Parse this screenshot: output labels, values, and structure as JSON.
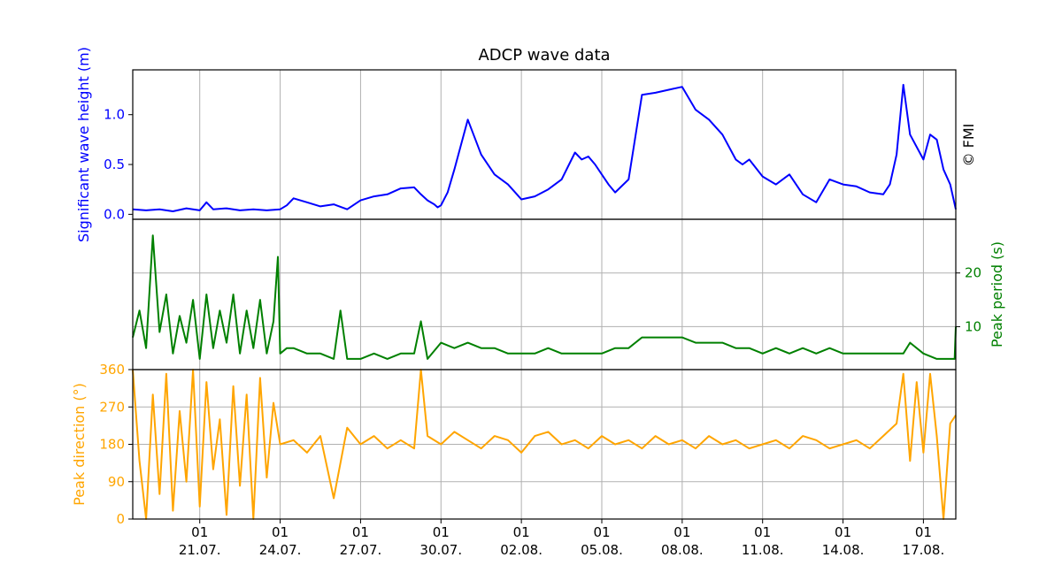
{
  "chart_data": {
    "type": "line",
    "title": "ADCP wave data",
    "credit": "© FMI",
    "x_start": "2023-07-18 12:00",
    "x_end": "2023-08-18 05:00",
    "x_ticks": [
      {
        "date": "2023-07-21",
        "day_label": "01",
        "date_label": "21.07."
      },
      {
        "date": "2023-07-24",
        "day_label": "01",
        "date_label": "24.07."
      },
      {
        "date": "2023-07-27",
        "day_label": "01",
        "date_label": "27.07."
      },
      {
        "date": "2023-07-30",
        "day_label": "01",
        "date_label": "30.07."
      },
      {
        "date": "2023-08-02",
        "day_label": "01",
        "date_label": "02.08."
      },
      {
        "date": "2023-08-05",
        "day_label": "01",
        "date_label": "05.08."
      },
      {
        "date": "2023-08-08",
        "day_label": "01",
        "date_label": "08.08."
      },
      {
        "date": "2023-08-11",
        "day_label": "01",
        "date_label": "11.08."
      },
      {
        "date": "2023-08-14",
        "day_label": "01",
        "date_label": "14.08."
      },
      {
        "date": "2023-08-17",
        "day_label": "01",
        "date_label": "17.08."
      }
    ],
    "panels": [
      {
        "name": "Significant wave height",
        "ylabel": "Significant wave height (m)",
        "axis_side": "left",
        "color": "#0000ff",
        "ylim": [
          -0.05,
          1.45
        ],
        "y_ticks": [
          0.0,
          0.5,
          1.0
        ],
        "y_tick_labels": [
          "0.0",
          "0.5",
          "1.0"
        ],
        "grid": "vertical only",
        "x": [
          "2023-07-18 12:00",
          "2023-07-19 00:00",
          "2023-07-19 12:00",
          "2023-07-20 00:00",
          "2023-07-20 12:00",
          "2023-07-21 00:00",
          "2023-07-21 06:00",
          "2023-07-21 12:00",
          "2023-07-22 00:00",
          "2023-07-22 12:00",
          "2023-07-23 00:00",
          "2023-07-23 12:00",
          "2023-07-24 00:00",
          "2023-07-24 06:00",
          "2023-07-24 12:00",
          "2023-07-25 00:00",
          "2023-07-25 12:00",
          "2023-07-26 00:00",
          "2023-07-26 12:00",
          "2023-07-27 00:00",
          "2023-07-27 12:00",
          "2023-07-28 00:00",
          "2023-07-28 12:00",
          "2023-07-29 00:00",
          "2023-07-29 06:00",
          "2023-07-29 12:00",
          "2023-07-29 18:00",
          "2023-07-29 21:00",
          "2023-07-30 00:00",
          "2023-07-30 06:00",
          "2023-07-30 12:00",
          "2023-07-31 00:00",
          "2023-07-31 12:00",
          "2023-08-01 00:00",
          "2023-08-01 12:00",
          "2023-08-01 20:00",
          "2023-08-02 00:00",
          "2023-08-02 12:00",
          "2023-08-03 00:00",
          "2023-08-03 12:00",
          "2023-08-04 00:00",
          "2023-08-04 06:00",
          "2023-08-04 12:00",
          "2023-08-04 18:00",
          "2023-08-05 00:00",
          "2023-08-05 06:00",
          "2023-08-05 12:00",
          "2023-08-06 00:00",
          "2023-08-06 12:00",
          "2023-08-07 00:00",
          "2023-08-07 12:00",
          "2023-08-08 00:00",
          "2023-08-08 12:00",
          "2023-08-09 00:00",
          "2023-08-09 12:00",
          "2023-08-10 00:00",
          "2023-08-10 06:00",
          "2023-08-10 12:00",
          "2023-08-11 00:00",
          "2023-08-11 12:00",
          "2023-08-12 00:00",
          "2023-08-12 12:00",
          "2023-08-13 00:00",
          "2023-08-13 12:00",
          "2023-08-14 00:00",
          "2023-08-14 12:00",
          "2023-08-15 00:00",
          "2023-08-15 12:00",
          "2023-08-15 18:00",
          "2023-08-16 00:00",
          "2023-08-16 06:00",
          "2023-08-16 12:00",
          "2023-08-17 00:00",
          "2023-08-17 06:00",
          "2023-08-17 12:00",
          "2023-08-17 18:00",
          "2023-08-18 00:00",
          "2023-08-18 05:00"
        ],
        "values": [
          0.05,
          0.04,
          0.05,
          0.03,
          0.06,
          0.04,
          0.12,
          0.05,
          0.06,
          0.04,
          0.05,
          0.04,
          0.05,
          0.09,
          0.16,
          0.12,
          0.08,
          0.1,
          0.05,
          0.14,
          0.18,
          0.2,
          0.26,
          0.27,
          0.2,
          0.14,
          0.1,
          0.07,
          0.09,
          0.22,
          0.45,
          0.95,
          0.6,
          0.4,
          0.3,
          0.2,
          0.15,
          0.18,
          0.25,
          0.35,
          0.62,
          0.55,
          0.58,
          0.5,
          0.4,
          0.3,
          0.22,
          0.35,
          1.2,
          1.22,
          1.25,
          1.28,
          1.05,
          0.95,
          0.8,
          0.55,
          0.5,
          0.55,
          0.38,
          0.3,
          0.4,
          0.2,
          0.12,
          0.35,
          0.3,
          0.28,
          0.22,
          0.2,
          0.3,
          0.6,
          1.3,
          0.8,
          0.55,
          0.8,
          0.75,
          0.45,
          0.3,
          0.05
        ]
      },
      {
        "name": "Peak period",
        "ylabel": "Peak period (s)",
        "axis_side": "right",
        "color": "#008000",
        "ylim": [
          2,
          30
        ],
        "y_ticks": [
          10,
          20
        ],
        "y_tick_labels": [
          "10",
          "20"
        ],
        "grid": "both",
        "x": [
          "2023-07-18 12:00",
          "2023-07-18 18:00",
          "2023-07-19 00:00",
          "2023-07-19 06:00",
          "2023-07-19 12:00",
          "2023-07-19 18:00",
          "2023-07-20 00:00",
          "2023-07-20 06:00",
          "2023-07-20 12:00",
          "2023-07-20 18:00",
          "2023-07-21 00:00",
          "2023-07-21 06:00",
          "2023-07-21 12:00",
          "2023-07-21 18:00",
          "2023-07-22 00:00",
          "2023-07-22 06:00",
          "2023-07-22 12:00",
          "2023-07-22 18:00",
          "2023-07-23 00:00",
          "2023-07-23 06:00",
          "2023-07-23 12:00",
          "2023-07-23 18:00",
          "2023-07-23 22:00",
          "2023-07-24 00:00",
          "2023-07-24 06:00",
          "2023-07-24 12:00",
          "2023-07-25 00:00",
          "2023-07-25 12:00",
          "2023-07-26 00:00",
          "2023-07-26 06:00",
          "2023-07-26 12:00",
          "2023-07-27 00:00",
          "2023-07-27 12:00",
          "2023-07-28 00:00",
          "2023-07-28 12:00",
          "2023-07-29 00:00",
          "2023-07-29 06:00",
          "2023-07-29 12:00",
          "2023-07-30 00:00",
          "2023-07-30 12:00",
          "2023-07-31 00:00",
          "2023-07-31 12:00",
          "2023-08-01 00:00",
          "2023-08-01 12:00",
          "2023-08-02 00:00",
          "2023-08-02 12:00",
          "2023-08-03 00:00",
          "2023-08-03 12:00",
          "2023-08-04 00:00",
          "2023-08-04 12:00",
          "2023-08-05 00:00",
          "2023-08-05 12:00",
          "2023-08-06 00:00",
          "2023-08-06 12:00",
          "2023-08-07 00:00",
          "2023-08-07 12:00",
          "2023-08-08 00:00",
          "2023-08-08 12:00",
          "2023-08-09 00:00",
          "2023-08-09 12:00",
          "2023-08-10 00:00",
          "2023-08-10 12:00",
          "2023-08-11 00:00",
          "2023-08-11 12:00",
          "2023-08-12 00:00",
          "2023-08-12 12:00",
          "2023-08-13 00:00",
          "2023-08-13 12:00",
          "2023-08-14 00:00",
          "2023-08-14 12:00",
          "2023-08-15 00:00",
          "2023-08-15 12:00",
          "2023-08-16 00:00",
          "2023-08-16 06:00",
          "2023-08-16 12:00",
          "2023-08-17 00:00",
          "2023-08-17 12:00",
          "2023-08-18 00:00",
          "2023-08-18 04:00",
          "2023-08-18 05:00"
        ],
        "values": [
          8,
          13,
          6,
          27,
          9,
          16,
          5,
          12,
          7,
          15,
          4,
          16,
          6,
          13,
          7,
          16,
          5,
          13,
          6,
          15,
          5,
          11,
          23,
          5,
          6,
          6,
          5,
          5,
          4,
          13,
          4,
          4,
          5,
          4,
          5,
          5,
          11,
          4,
          7,
          6,
          7,
          6,
          6,
          5,
          5,
          5,
          6,
          5,
          5,
          5,
          5,
          6,
          6,
          8,
          8,
          8,
          8,
          7,
          7,
          7,
          6,
          6,
          5,
          6,
          5,
          6,
          5,
          6,
          5,
          5,
          5,
          5,
          5,
          5,
          7,
          5,
          4,
          4,
          4,
          10
        ]
      },
      {
        "name": "Peak direction",
        "ylabel": "Peak direction (°)",
        "axis_side": "left",
        "color": "#ffa500",
        "ylim": [
          0,
          360
        ],
        "y_ticks": [
          0,
          90,
          180,
          270,
          360
        ],
        "y_tick_labels": [
          "0",
          "90",
          "180",
          "270",
          "360"
        ],
        "grid": "both",
        "x": [
          "2023-07-18 12:00",
          "2023-07-18 18:00",
          "2023-07-19 00:00",
          "2023-07-19 06:00",
          "2023-07-19 12:00",
          "2023-07-19 18:00",
          "2023-07-20 00:00",
          "2023-07-20 06:00",
          "2023-07-20 12:00",
          "2023-07-20 18:00",
          "2023-07-21 00:00",
          "2023-07-21 06:00",
          "2023-07-21 12:00",
          "2023-07-21 18:00",
          "2023-07-22 00:00",
          "2023-07-22 06:00",
          "2023-07-22 12:00",
          "2023-07-22 18:00",
          "2023-07-23 00:00",
          "2023-07-23 06:00",
          "2023-07-23 12:00",
          "2023-07-23 18:00",
          "2023-07-24 00:00",
          "2023-07-24 12:00",
          "2023-07-25 00:00",
          "2023-07-25 12:00",
          "2023-07-26 00:00",
          "2023-07-26 12:00",
          "2023-07-27 00:00",
          "2023-07-27 12:00",
          "2023-07-28 00:00",
          "2023-07-28 12:00",
          "2023-07-29 00:00",
          "2023-07-29 06:00",
          "2023-07-29 12:00",
          "2023-07-30 00:00",
          "2023-07-30 12:00",
          "2023-07-31 00:00",
          "2023-07-31 12:00",
          "2023-08-01 00:00",
          "2023-08-01 12:00",
          "2023-08-02 00:00",
          "2023-08-02 12:00",
          "2023-08-03 00:00",
          "2023-08-03 12:00",
          "2023-08-04 00:00",
          "2023-08-04 12:00",
          "2023-08-05 00:00",
          "2023-08-05 12:00",
          "2023-08-06 00:00",
          "2023-08-06 12:00",
          "2023-08-07 00:00",
          "2023-08-07 12:00",
          "2023-08-08 00:00",
          "2023-08-08 12:00",
          "2023-08-09 00:00",
          "2023-08-09 12:00",
          "2023-08-10 00:00",
          "2023-08-10 12:00",
          "2023-08-11 00:00",
          "2023-08-11 12:00",
          "2023-08-12 00:00",
          "2023-08-12 12:00",
          "2023-08-13 00:00",
          "2023-08-13 12:00",
          "2023-08-14 00:00",
          "2023-08-14 12:00",
          "2023-08-15 00:00",
          "2023-08-15 12:00",
          "2023-08-16 00:00",
          "2023-08-16 06:00",
          "2023-08-16 12:00",
          "2023-08-16 18:00",
          "2023-08-17 00:00",
          "2023-08-17 06:00",
          "2023-08-17 12:00",
          "2023-08-17 18:00",
          "2023-08-18 00:00",
          "2023-08-18 05:00"
        ],
        "values": [
          360,
          140,
          0,
          300,
          60,
          350,
          20,
          260,
          90,
          360,
          30,
          330,
          120,
          240,
          10,
          320,
          80,
          300,
          0,
          340,
          100,
          280,
          180,
          190,
          160,
          200,
          50,
          220,
          180,
          200,
          170,
          190,
          170,
          360,
          200,
          180,
          210,
          190,
          170,
          200,
          190,
          160,
          200,
          210,
          180,
          190,
          170,
          200,
          180,
          190,
          170,
          200,
          180,
          190,
          170,
          200,
          180,
          190,
          170,
          180,
          190,
          170,
          200,
          190,
          170,
          180,
          190,
          170,
          200,
          230,
          350,
          140,
          330,
          160,
          350,
          200,
          0,
          230,
          250
        ]
      }
    ]
  }
}
